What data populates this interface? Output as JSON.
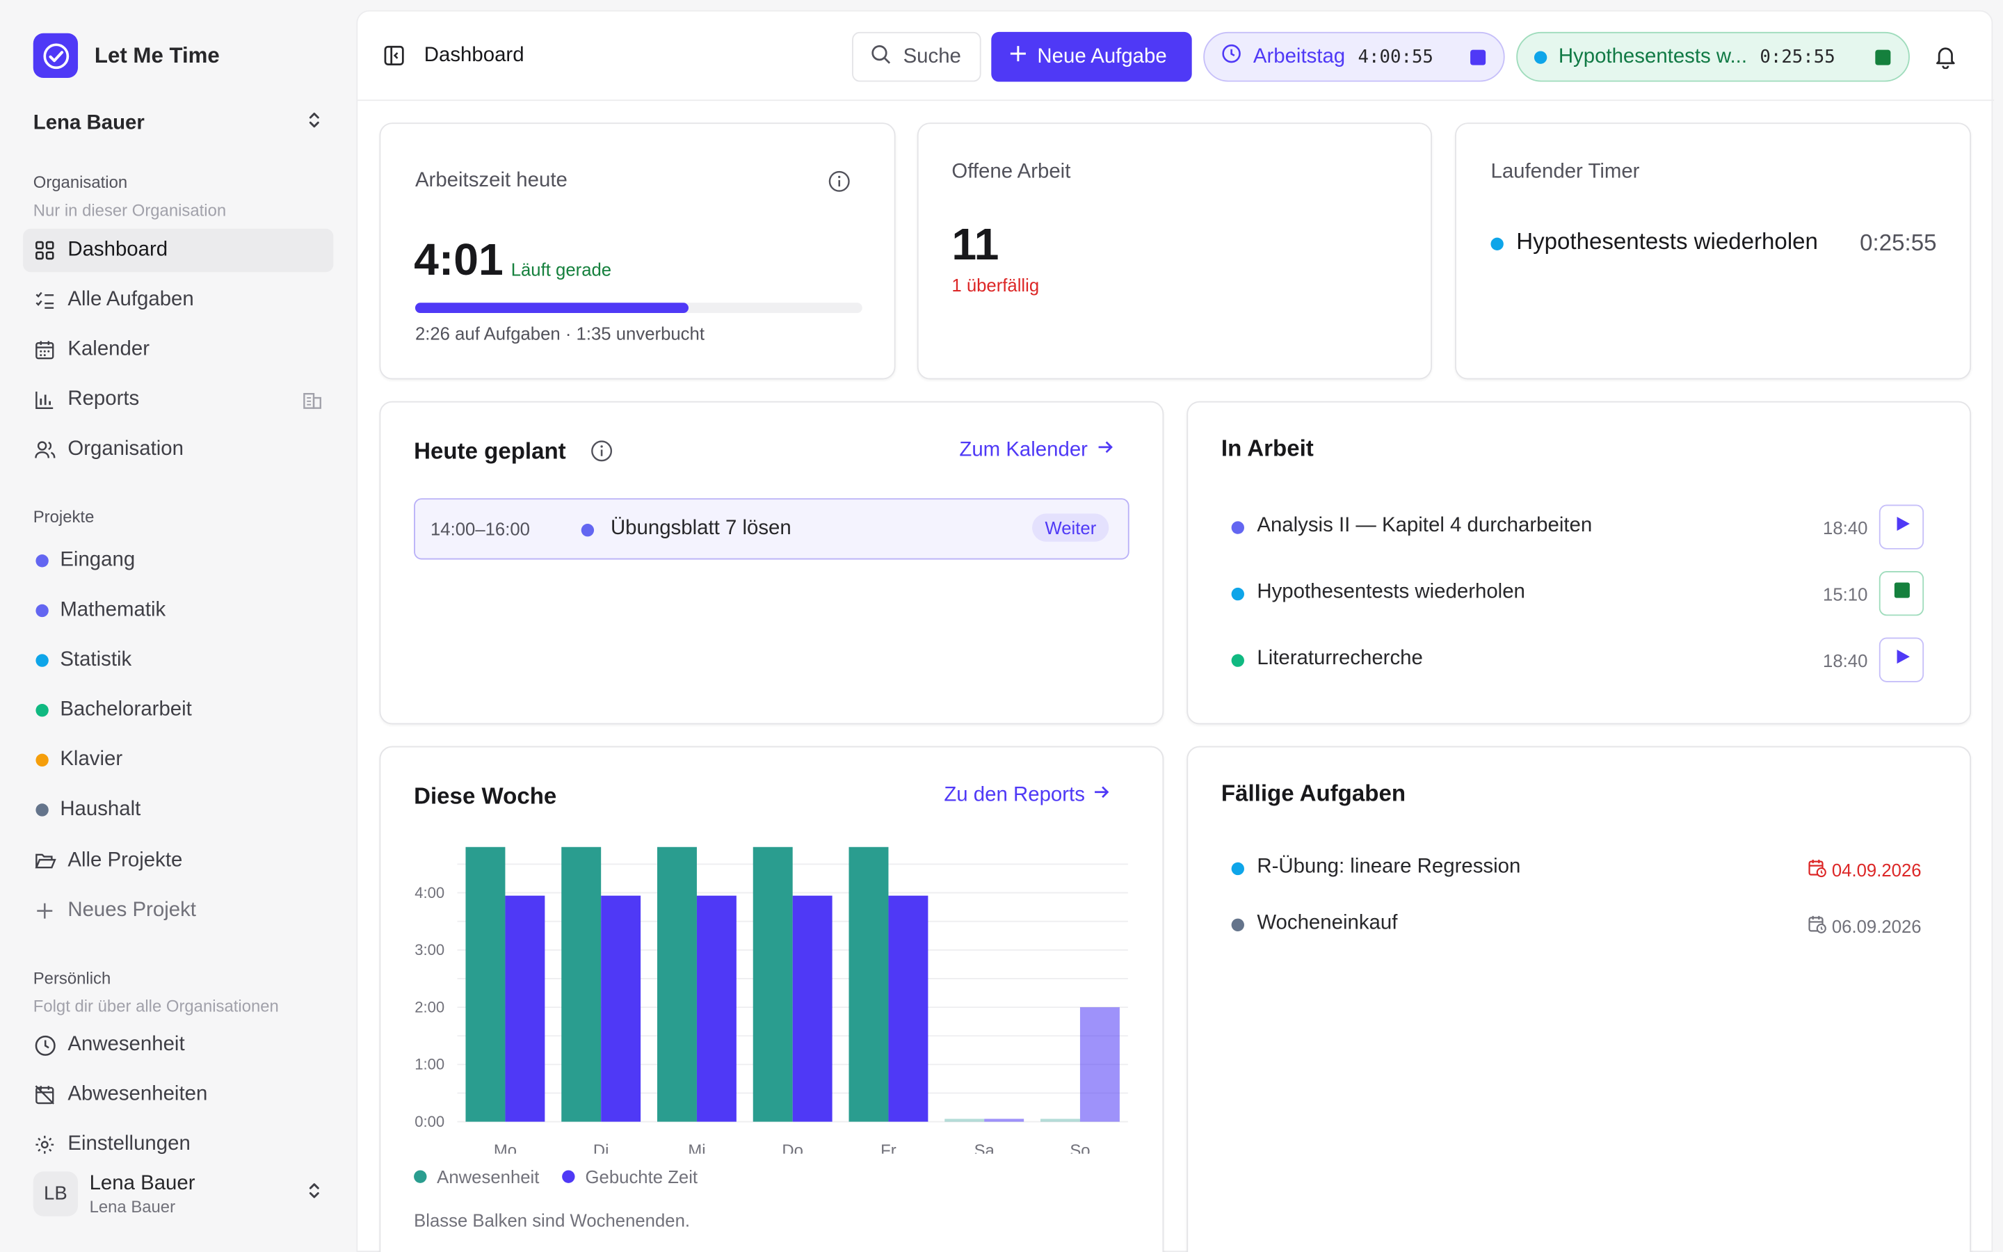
{
  "app": {
    "name": "Let Me Time"
  },
  "sidebar": {
    "user_name": "Lena Bauer",
    "org_section": {
      "title": "Organisation",
      "subtitle": "Nur in dieser Organisation"
    },
    "org_items": [
      {
        "label": "Dashboard",
        "icon": "grid-icon",
        "active": true
      },
      {
        "label": "Alle Aufgaben",
        "icon": "list-check-icon"
      },
      {
        "label": "Kalender",
        "icon": "calendar-icon"
      },
      {
        "label": "Reports",
        "icon": "bar-chart-icon",
        "trail_icon": "building-icon"
      },
      {
        "label": "Organisation",
        "icon": "users-icon"
      }
    ],
    "projects_title": "Projekte",
    "projects": [
      {
        "label": "Eingang",
        "color": "#6366f1"
      },
      {
        "label": "Mathematik",
        "color": "#6366f1"
      },
      {
        "label": "Statistik",
        "color": "#0ea5e9"
      },
      {
        "label": "Bachelorarbeit",
        "color": "#10b981"
      },
      {
        "label": "Klavier",
        "color": "#f59e0b"
      },
      {
        "label": "Haushalt",
        "color": "#64748b"
      }
    ],
    "all_projects": "Alle Projekte",
    "new_project": "Neues Projekt",
    "personal_section": {
      "title": "Persönlich",
      "subtitle": "Folgt dir über alle Organisationen"
    },
    "personal_items": [
      {
        "label": "Anwesenheit",
        "icon": "clock-icon"
      },
      {
        "label": "Abwesenheiten",
        "icon": "calendar-off-icon"
      },
      {
        "label": "Einstellungen",
        "icon": "gear-icon"
      }
    ],
    "bottom_user": {
      "initials": "LB",
      "name": "Lena Bauer",
      "sub": "Lena Bauer"
    }
  },
  "topbar": {
    "title": "Dashboard",
    "search_label": "Suche",
    "new_task_label": "Neue Aufgabe",
    "workday": {
      "label": "Arbeitstag",
      "time": "4:00:55"
    },
    "running_task": {
      "label": "Hypothesentests w...",
      "time": "0:25:55"
    }
  },
  "cards": {
    "worktime": {
      "label": "Arbeitszeit heute",
      "value": "4:01",
      "status": "Läuft gerade",
      "progress": 0.61,
      "detail": "2:26 auf Aufgaben · 1:35 unverbucht"
    },
    "open_work": {
      "label": "Offene Arbeit",
      "value": "11",
      "overdue": "1 überfällig"
    },
    "running_timer": {
      "label": "Laufender Timer",
      "task": "Hypothesentests wiederholen",
      "time": "0:25:55",
      "color": "#0ea5e9"
    }
  },
  "today": {
    "title": "Heute geplant",
    "link": "Zum Kalender",
    "entries": [
      {
        "time": "14:00–16:00",
        "title": "Übungsblatt 7 lösen",
        "badge": "Weiter",
        "color": "#6366f1"
      }
    ]
  },
  "in_progress": {
    "title": "In Arbeit",
    "items": [
      {
        "title": "Analysis II — Kapitel 4 durcharbeiten",
        "time": "18:40",
        "color": "#6366f1",
        "action": "play"
      },
      {
        "title": "Hypothesentests wiederholen",
        "time": "15:10",
        "color": "#0ea5e9",
        "action": "stop"
      },
      {
        "title": "Literaturrecherche",
        "time": "18:40",
        "color": "#10b981",
        "action": "play"
      }
    ]
  },
  "week": {
    "title": "Diese Woche",
    "link": "Zu den Reports",
    "note": "Blasse Balken sind Wochenenden."
  },
  "due": {
    "title": "Fällige Aufgaben",
    "items": [
      {
        "title": "R-Übung: lineare Regression",
        "date": "04.09.2026",
        "color": "#0ea5e9",
        "overdue": true
      },
      {
        "title": "Wocheneinkauf",
        "date": "06.09.2026",
        "color": "#64748b",
        "overdue": false
      }
    ]
  },
  "chart_data": {
    "type": "bar",
    "categories": [
      "Mo",
      "Di",
      "Mi",
      "Do",
      "Fr",
      "Sa",
      "So"
    ],
    "series": [
      {
        "name": "Anwesenheit",
        "color": "#2a9d8f",
        "values": [
          4.8,
          4.8,
          4.8,
          4.8,
          4.8,
          0.05,
          0.05
        ]
      },
      {
        "name": "Gebuchte Zeit",
        "color": "#4f39f6",
        "values": [
          3.95,
          3.95,
          3.95,
          3.95,
          3.95,
          0.05,
          2.0
        ]
      }
    ],
    "weekend_indices": [
      5,
      6
    ],
    "y_ticks": [
      "0:00",
      "1:00",
      "2:00",
      "3:00",
      "4:00"
    ],
    "ylim": [
      0,
      4.8
    ],
    "legend": "bottom-left"
  }
}
